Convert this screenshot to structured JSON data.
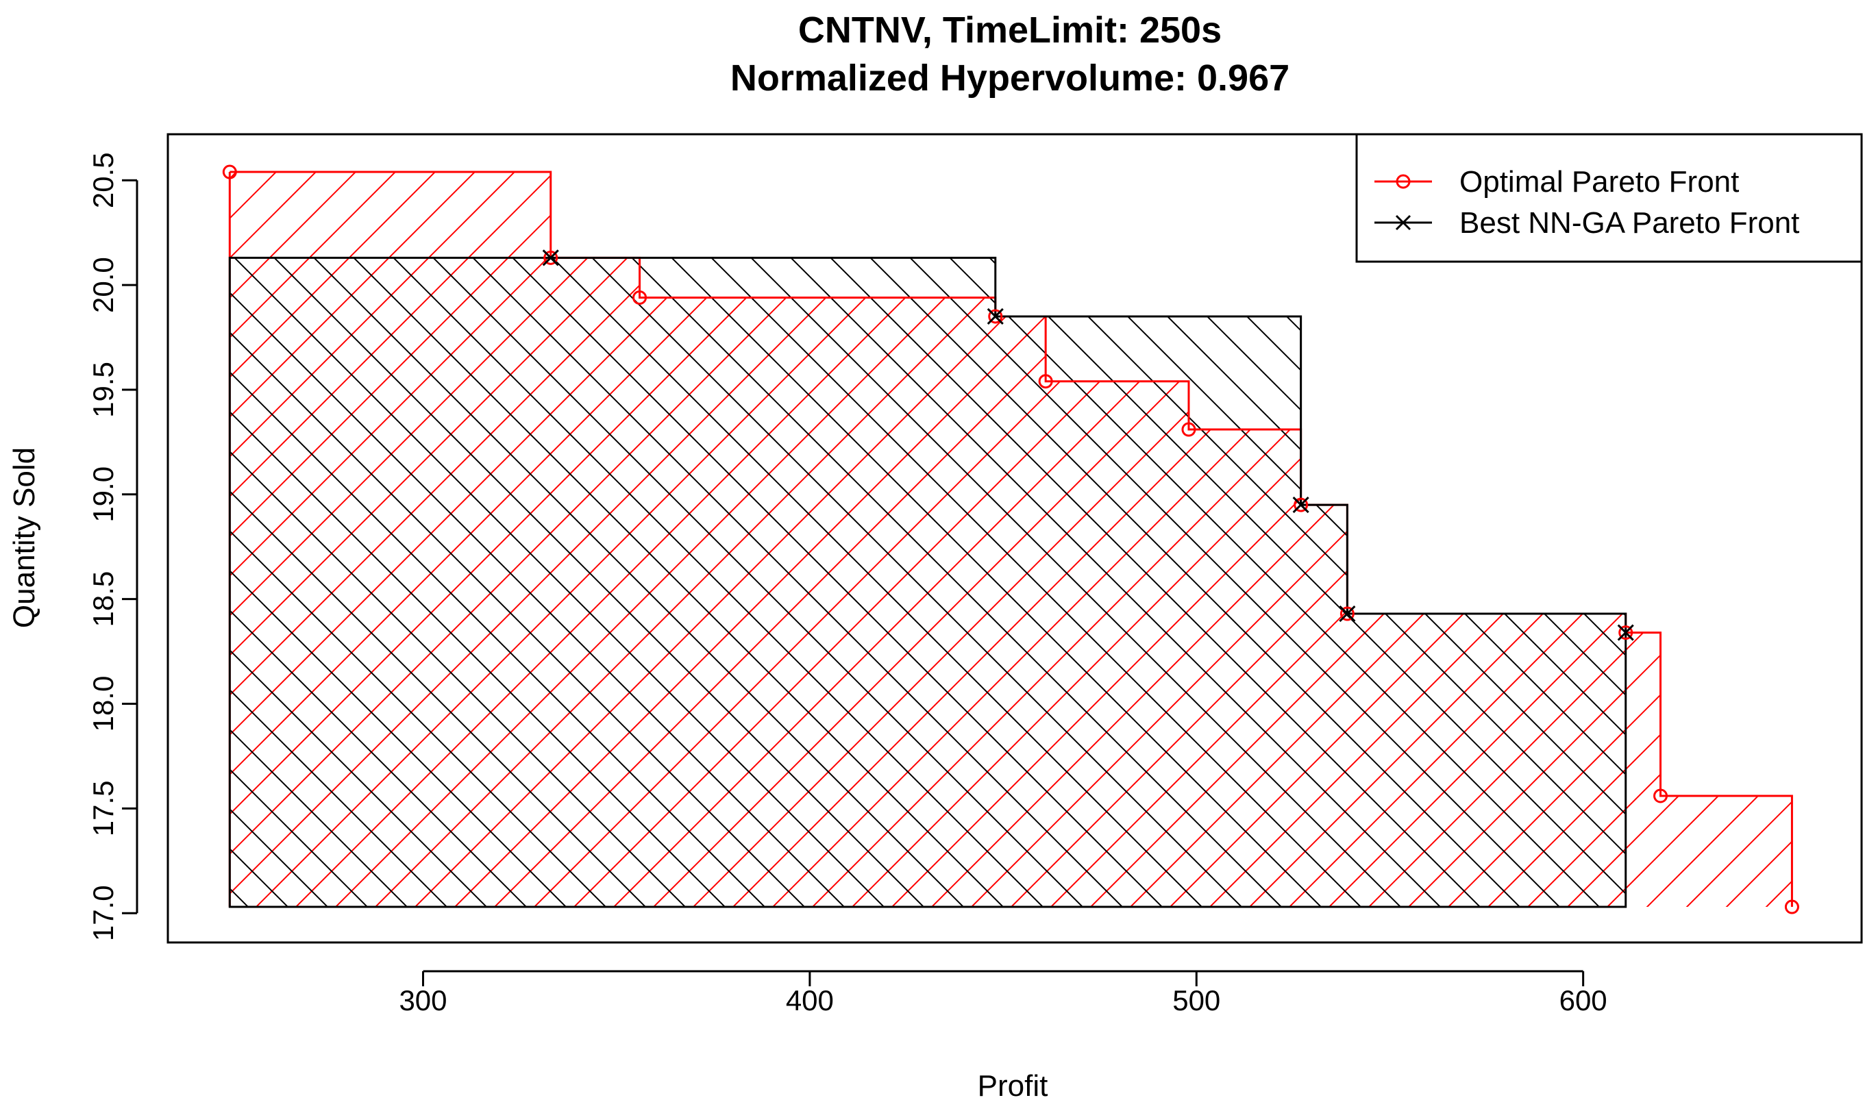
{
  "chart_data": {
    "type": "line",
    "title": "CNTNV, TimeLimit: 250s",
    "subtitle": "Normalized Hypervolume: 0.967",
    "xlabel": "Profit",
    "ylabel": "Quantity Sold",
    "xlim": [
      234,
      672
    ],
    "ylim": [
      16.86,
      20.72
    ],
    "xticks": [
      "300",
      "400",
      "500",
      "600"
    ],
    "yticks": [
      "17.0",
      "17.5",
      "18.0",
      "18.5",
      "19.0",
      "19.5",
      "20.0",
      "20.5"
    ],
    "legend_position": "top-right",
    "reference_point": {
      "x": 250,
      "y": 17.03
    },
    "series": [
      {
        "name": "Optimal Pareto Front",
        "color": "#ff0000",
        "marker": "circle",
        "points": [
          {
            "x": 250,
            "y": 20.54
          },
          {
            "x": 333,
            "y": 20.13
          },
          {
            "x": 356,
            "y": 19.94
          },
          {
            "x": 448,
            "y": 19.85
          },
          {
            "x": 461,
            "y": 19.54
          },
          {
            "x": 498,
            "y": 19.31
          },
          {
            "x": 527,
            "y": 18.95
          },
          {
            "x": 539,
            "y": 18.43
          },
          {
            "x": 611,
            "y": 18.34
          },
          {
            "x": 620,
            "y": 17.56
          },
          {
            "x": 654,
            "y": 17.03
          }
        ]
      },
      {
        "name": "Best NN-GA Pareto Front",
        "color": "#000000",
        "marker": "cross",
        "points": [
          {
            "x": 333,
            "y": 20.13
          },
          {
            "x": 448,
            "y": 19.85
          },
          {
            "x": 527,
            "y": 18.95
          },
          {
            "x": 539,
            "y": 18.43
          },
          {
            "x": 611,
            "y": 18.34
          }
        ]
      }
    ]
  }
}
